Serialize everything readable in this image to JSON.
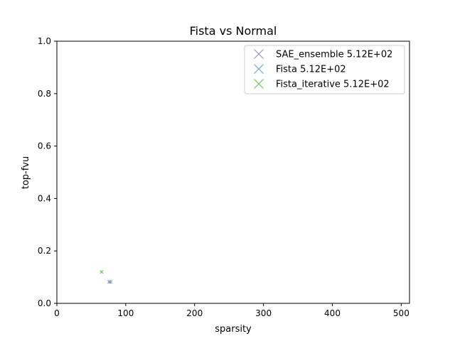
{
  "chart_data": {
    "type": "scatter",
    "title": "Fista vs Normal",
    "xlabel": "sparsity",
    "ylabel": "top-fvu",
    "xlim": [
      0,
      512
    ],
    "ylim": [
      0,
      1.0
    ],
    "xticks": [
      0,
      100,
      200,
      300,
      400,
      500
    ],
    "xtick_labels": [
      "0",
      "100",
      "200",
      "300",
      "400",
      "500"
    ],
    "yticks": [
      0.0,
      0.2,
      0.4,
      0.6,
      0.8,
      1.0
    ],
    "ytick_labels": [
      "0.0",
      "0.2",
      "0.4",
      "0.6",
      "0.8",
      "1.0"
    ],
    "grid": false,
    "legend_position": "upper-right",
    "marker": "x",
    "series": [
      {
        "name": "SAE_ensemble 5.12E+02",
        "color": "#9b8fbf",
        "points": [
          {
            "x": 76,
            "y": 0.082
          }
        ]
      },
      {
        "name": "Fista 5.12E+02",
        "color": "#6fa8d6",
        "points": [
          {
            "x": 78,
            "y": 0.082
          }
        ]
      },
      {
        "name": "Fista_iterative 5.12E+02",
        "color": "#6cc35a",
        "points": [
          {
            "x": 65,
            "y": 0.12
          }
        ]
      }
    ]
  }
}
